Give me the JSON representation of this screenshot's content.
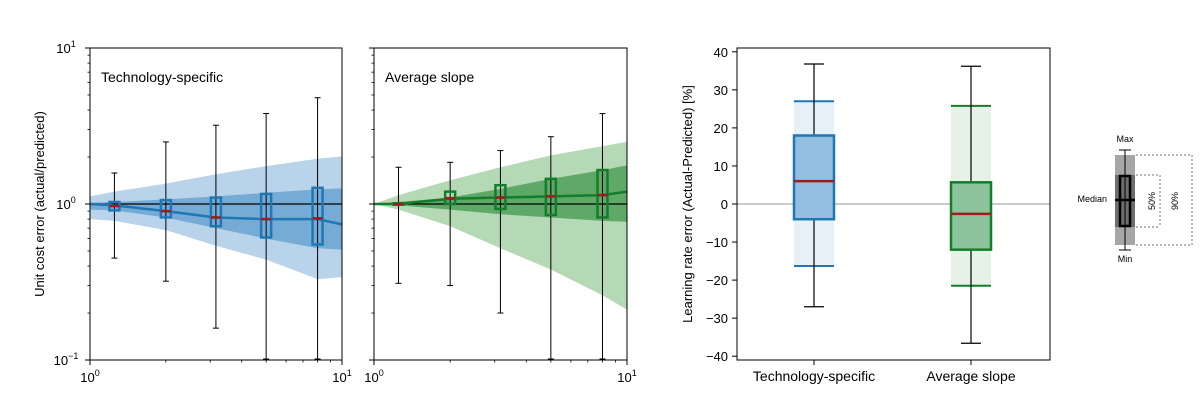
{
  "colors": {
    "blue": "#1f77b4",
    "green": "#137d2c",
    "median": "#a01c1c",
    "blue_light": "#b8d3ea",
    "blue_mid": "#6aa3d2",
    "green_light": "#b5d9b5",
    "green_mid": "#4fa05a"
  },
  "chart_data": [
    {
      "type": "area",
      "panel": "left",
      "title": "Technology-specific",
      "ylabel": "Unit cost error (actual/predicted)",
      "xscale": "log",
      "yscale": "log",
      "xlim": [
        1,
        10
      ],
      "ylim": [
        0.1,
        10
      ],
      "xticks": [
        {
          "value": 1,
          "base": "10",
          "exp": "0"
        },
        {
          "value": 10,
          "base": "10",
          "exp": "1"
        }
      ],
      "yticks": [
        {
          "value": 0.1,
          "base": "10",
          "exp": "−1"
        },
        {
          "value": 1,
          "base": "10",
          "exp": "0"
        },
        {
          "value": 10,
          "base": "10",
          "exp": "1"
        }
      ],
      "band_x": [
        1,
        1.25,
        2,
        3.16,
        5,
        8,
        10
      ],
      "band90_low": [
        0.8,
        0.78,
        0.68,
        0.54,
        0.44,
        0.33,
        0.34
      ],
      "band90_high": [
        1.12,
        1.2,
        1.35,
        1.55,
        1.75,
        1.95,
        2.02
      ],
      "band50_low": [
        0.92,
        0.91,
        0.82,
        0.7,
        0.6,
        0.52,
        0.51
      ],
      "band50_high": [
        1.02,
        1.03,
        1.07,
        1.12,
        1.18,
        1.24,
        1.26
      ],
      "median_line": [
        1.0,
        0.98,
        0.9,
        0.82,
        0.8,
        0.8,
        0.74
      ],
      "boxes": [
        {
          "x": 1.25,
          "min": 0.45,
          "q1": 0.91,
          "median": 0.97,
          "q3": 1.03,
          "max": 1.58
        },
        {
          "x": 2,
          "min": 0.32,
          "q1": 0.82,
          "median": 0.9,
          "q3": 1.06,
          "max": 2.5
        },
        {
          "x": 3.16,
          "min": 0.16,
          "q1": 0.72,
          "median": 0.82,
          "q3": 1.1,
          "max": 3.2
        },
        {
          "x": 5,
          "min": 0.1,
          "q1": 0.61,
          "median": 0.8,
          "q3": 1.16,
          "max": 3.8
        },
        {
          "x": 8,
          "min": 0.1,
          "q1": 0.55,
          "median": 0.81,
          "q3": 1.27,
          "max": 4.8
        }
      ]
    },
    {
      "type": "area",
      "panel": "middle",
      "title": "Average slope",
      "xscale": "log",
      "yscale": "log",
      "xlim": [
        1,
        10
      ],
      "ylim": [
        0.1,
        10
      ],
      "xticks": [
        {
          "value": 1,
          "base": "10",
          "exp": "0"
        },
        {
          "value": 10,
          "base": "10",
          "exp": "1"
        }
      ],
      "band_x": [
        1,
        1.25,
        2,
        3.16,
        5,
        8,
        10
      ],
      "band90_low": [
        1.0,
        0.92,
        0.72,
        0.52,
        0.38,
        0.26,
        0.21
      ],
      "band90_high": [
        1.0,
        1.14,
        1.42,
        1.72,
        2.05,
        2.35,
        2.5
      ],
      "band50_low": [
        1.0,
        0.98,
        0.92,
        0.86,
        0.82,
        0.78,
        0.77
      ],
      "band50_high": [
        1.0,
        1.03,
        1.1,
        1.25,
        1.45,
        1.65,
        1.77
      ],
      "median_line": [
        1.0,
        1.0,
        1.08,
        1.1,
        1.12,
        1.14,
        1.2
      ],
      "boxes": [
        {
          "x": 1.25,
          "min": 0.31,
          "q1": 0.99,
          "median": 1.0,
          "q3": 1.01,
          "max": 1.72
        },
        {
          "x": 2,
          "min": 0.3,
          "q1": 1.0,
          "median": 1.09,
          "q3": 1.2,
          "max": 1.85
        },
        {
          "x": 3.16,
          "min": 0.2,
          "q1": 0.93,
          "median": 1.1,
          "q3": 1.32,
          "max": 2.2
        },
        {
          "x": 5,
          "min": 0.1,
          "q1": 0.85,
          "median": 1.12,
          "q3": 1.45,
          "max": 2.7
        },
        {
          "x": 8,
          "min": 0.1,
          "q1": 0.82,
          "median": 1.14,
          "q3": 1.65,
          "max": 3.8
        }
      ]
    },
    {
      "type": "box",
      "panel": "right",
      "ylabel": "Learning rate error (Actual-Predicted) [%]",
      "ylim": [
        -41,
        41
      ],
      "yticks": [
        -40,
        -30,
        -20,
        -10,
        0,
        10,
        20,
        30,
        40
      ],
      "categories": [
        "Technology-specific",
        "Average slope"
      ],
      "boxes": [
        {
          "name": "Technology-specific",
          "min": -27,
          "p5": -16.3,
          "q1": -4,
          "median": 6,
          "q3": 18,
          "p95": 27,
          "max": 36.8
        },
        {
          "name": "Average slope",
          "min": -36.6,
          "p5": -21.5,
          "q1": -12,
          "median": -2.6,
          "q3": 5.7,
          "p95": 25.8,
          "max": 36.2
        }
      ]
    }
  ],
  "legend": {
    "max_label": "Max",
    "median_label": "Median",
    "min_label": "Min",
    "label_50": "50%",
    "label_90": "90%"
  }
}
